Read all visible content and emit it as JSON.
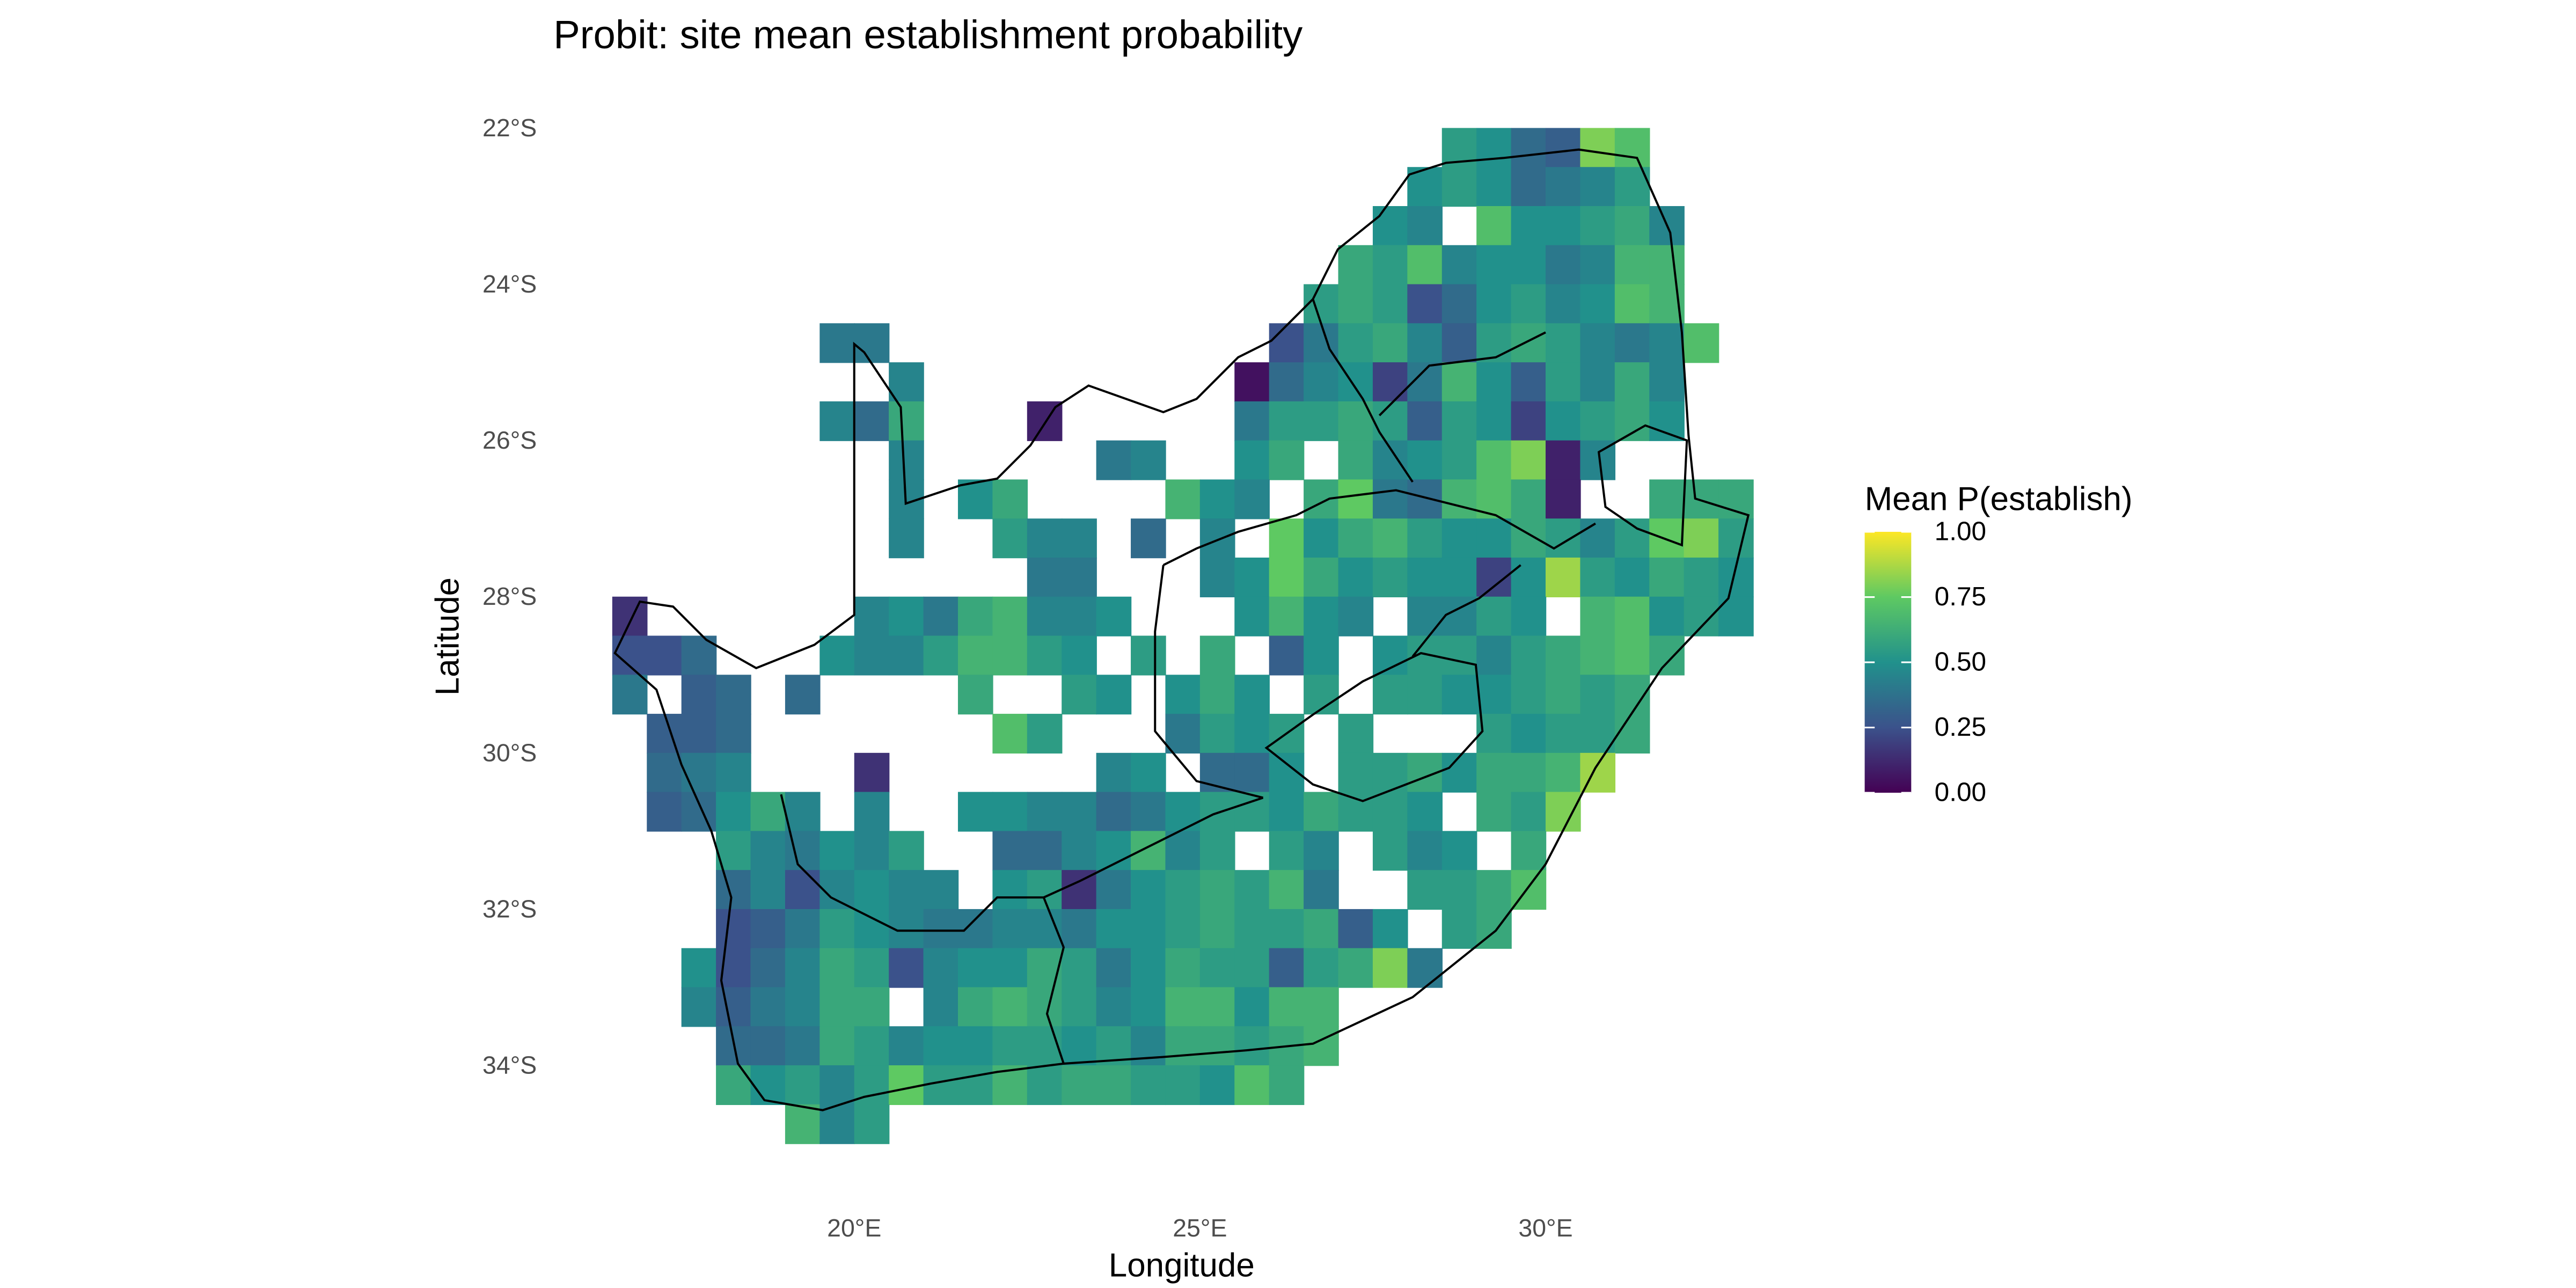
{
  "chart_data": {
    "type": "heatmap",
    "title": "Probit: site mean establishment probability",
    "x_label": "Longitude",
    "y_label": "Latitude",
    "legend_title": "Mean P(establish)",
    "xlim": [
      16.5,
      33.0
    ],
    "ylim": [
      -35.0,
      -22.0
    ],
    "clim": [
      0,
      1
    ],
    "colormap": [
      "#440154",
      "#3b528b",
      "#21918c",
      "#5ec962",
      "#fde725"
    ],
    "xticks": [
      {
        "value": 20,
        "label": "20°E"
      },
      {
        "value": 25,
        "label": "25°E"
      },
      {
        "value": 30,
        "label": "30°E"
      }
    ],
    "yticks": [
      {
        "value": -22,
        "label": "22°S"
      },
      {
        "value": -24,
        "label": "24°S"
      },
      {
        "value": -26,
        "label": "26°S"
      },
      {
        "value": -28,
        "label": "28°S"
      },
      {
        "value": -30,
        "label": "30°S"
      },
      {
        "value": -32,
        "label": "32°S"
      },
      {
        "value": -34,
        "label": "34°S"
      }
    ],
    "cticks": [
      {
        "value": 0,
        "label": "0.00"
      },
      {
        "value": 0.25,
        "label": "0.25"
      },
      {
        "value": 0.5,
        "label": "0.50"
      },
      {
        "value": 0.75,
        "label": "0.75"
      },
      {
        "value": 1,
        "label": "1.00"
      }
    ],
    "x": [
      16.75,
      17.25,
      17.75,
      18.25,
      18.75,
      19.25,
      19.75,
      20.25,
      20.75,
      21.25,
      21.75,
      22.25,
      22.75,
      23.25,
      23.75,
      24.25,
      24.75,
      25.25,
      25.75,
      26.25,
      26.75,
      27.25,
      27.75,
      28.25,
      28.75,
      29.25,
      29.75,
      30.25,
      30.75,
      31.25,
      31.75,
      32.25,
      32.75
    ],
    "y": [
      -22.25,
      -22.75,
      -23.25,
      -23.75,
      -24.25,
      -24.75,
      -25.25,
      -25.75,
      -26.25,
      -26.75,
      -27.25,
      -27.75,
      -28.25,
      -28.75,
      -29.25,
      -29.75,
      -30.25,
      -30.75,
      -31.25,
      -31.75,
      -32.25,
      -32.75,
      -33.25,
      -33.75,
      -34.25,
      -34.75
    ],
    "values": [
      [
        null,
        null,
        null,
        null,
        null,
        null,
        null,
        null,
        null,
        null,
        null,
        null,
        null,
        null,
        null,
        null,
        null,
        null,
        null,
        null,
        null,
        null,
        null,
        null,
        0.55,
        0.5,
        0.35,
        0.3,
        0.8,
        0.7,
        null,
        null,
        null
      ],
      [
        null,
        null,
        null,
        null,
        null,
        null,
        null,
        null,
        null,
        null,
        null,
        null,
        null,
        null,
        null,
        null,
        null,
        null,
        null,
        null,
        null,
        null,
        null,
        0.5,
        0.55,
        0.5,
        0.35,
        0.4,
        0.45,
        0.55,
        null,
        null,
        null
      ],
      [
        null,
        null,
        null,
        null,
        null,
        null,
        null,
        null,
        null,
        null,
        null,
        null,
        null,
        null,
        null,
        null,
        null,
        null,
        null,
        null,
        null,
        null,
        0.5,
        0.45,
        null,
        0.7,
        0.5,
        0.5,
        0.55,
        0.6,
        0.45,
        null,
        null
      ],
      [
        null,
        null,
        null,
        null,
        null,
        null,
        null,
        null,
        null,
        null,
        null,
        null,
        null,
        null,
        null,
        null,
        null,
        null,
        null,
        null,
        null,
        0.6,
        0.55,
        0.7,
        0.45,
        0.5,
        0.5,
        0.4,
        0.45,
        0.65,
        0.65,
        null,
        null
      ],
      [
        null,
        null,
        null,
        null,
        null,
        null,
        null,
        null,
        null,
        null,
        null,
        null,
        null,
        null,
        null,
        null,
        null,
        null,
        null,
        null,
        0.55,
        0.6,
        0.55,
        0.25,
        0.35,
        0.5,
        0.55,
        0.45,
        0.5,
        0.7,
        0.65,
        null,
        null
      ],
      [
        null,
        null,
        null,
        null,
        null,
        null,
        0.4,
        0.4,
        null,
        null,
        null,
        null,
        null,
        null,
        null,
        null,
        null,
        null,
        null,
        0.25,
        0.4,
        0.55,
        0.6,
        0.45,
        0.3,
        0.55,
        0.6,
        0.55,
        0.45,
        0.4,
        0.45,
        0.7,
        null
      ],
      [
        null,
        null,
        null,
        null,
        null,
        null,
        null,
        null,
        0.45,
        null,
        null,
        null,
        null,
        null,
        null,
        null,
        null,
        null,
        0.05,
        0.35,
        0.45,
        0.5,
        0.2,
        0.4,
        0.65,
        0.5,
        0.3,
        0.55,
        0.45,
        0.6,
        0.45,
        null,
        null
      ],
      [
        null,
        null,
        null,
        null,
        null,
        null,
        0.45,
        0.35,
        0.6,
        null,
        null,
        null,
        0.1,
        null,
        null,
        null,
        null,
        null,
        0.4,
        0.55,
        0.55,
        0.6,
        0.55,
        0.3,
        0.55,
        0.5,
        0.2,
        0.5,
        0.55,
        0.6,
        0.5,
        null,
        null
      ],
      [
        null,
        null,
        null,
        null,
        null,
        null,
        null,
        null,
        0.45,
        null,
        null,
        null,
        null,
        null,
        0.4,
        0.45,
        null,
        null,
        0.5,
        0.6,
        null,
        0.6,
        0.45,
        0.5,
        0.55,
        0.7,
        0.8,
        0.1,
        0.45,
        null,
        null,
        null,
        null
      ],
      [
        null,
        null,
        null,
        null,
        null,
        null,
        null,
        null,
        0.45,
        null,
        0.5,
        0.6,
        null,
        null,
        null,
        null,
        0.65,
        0.5,
        0.45,
        null,
        0.6,
        0.75,
        0.4,
        0.35,
        0.65,
        0.7,
        0.6,
        0.1,
        null,
        null,
        0.6,
        0.6,
        0.6
      ],
      [
        null,
        null,
        null,
        null,
        null,
        null,
        null,
        null,
        0.45,
        null,
        null,
        0.55,
        0.45,
        0.45,
        null,
        0.35,
        null,
        0.45,
        null,
        0.75,
        0.5,
        0.6,
        0.65,
        0.55,
        0.5,
        0.5,
        0.6,
        0.55,
        0.45,
        0.55,
        0.75,
        0.8,
        0.55
      ],
      [
        null,
        null,
        null,
        null,
        null,
        null,
        null,
        null,
        null,
        null,
        null,
        null,
        0.4,
        0.4,
        null,
        null,
        null,
        0.45,
        0.5,
        0.75,
        0.6,
        0.5,
        0.55,
        0.5,
        0.5,
        0.2,
        0.5,
        0.85,
        0.55,
        0.5,
        0.6,
        0.55,
        0.5
      ],
      [
        0.15,
        null,
        null,
        null,
        null,
        null,
        null,
        0.45,
        0.5,
        0.4,
        0.6,
        0.65,
        0.45,
        0.45,
        0.5,
        null,
        null,
        null,
        0.5,
        0.65,
        0.5,
        0.45,
        null,
        0.45,
        0.45,
        0.55,
        0.5,
        null,
        0.65,
        0.7,
        0.5,
        0.55,
        0.5
      ],
      [
        0.25,
        0.25,
        0.35,
        null,
        null,
        null,
        0.5,
        0.45,
        0.45,
        0.55,
        0.65,
        0.65,
        0.55,
        0.5,
        null,
        0.55,
        null,
        0.6,
        null,
        0.3,
        0.5,
        null,
        0.5,
        0.55,
        0.55,
        0.45,
        0.55,
        0.6,
        0.65,
        0.7,
        0.6,
        null,
        null
      ],
      [
        0.4,
        null,
        0.3,
        0.35,
        null,
        0.35,
        null,
        null,
        null,
        null,
        0.6,
        null,
        null,
        0.55,
        0.5,
        null,
        0.5,
        0.6,
        0.5,
        null,
        0.55,
        null,
        0.55,
        0.55,
        0.5,
        0.5,
        0.55,
        0.6,
        0.55,
        0.6,
        null,
        null,
        null
      ],
      [
        null,
        0.3,
        0.3,
        0.35,
        null,
        null,
        null,
        null,
        null,
        null,
        null,
        0.7,
        0.55,
        null,
        null,
        null,
        0.4,
        0.55,
        0.5,
        0.55,
        null,
        0.55,
        null,
        null,
        null,
        0.55,
        0.5,
        0.55,
        0.55,
        0.6,
        null,
        null,
        null
      ],
      [
        null,
        0.35,
        0.4,
        0.45,
        null,
        null,
        null,
        0.15,
        null,
        null,
        null,
        null,
        null,
        null,
        0.45,
        0.5,
        null,
        0.35,
        0.35,
        0.5,
        null,
        0.55,
        0.55,
        0.6,
        0.5,
        0.6,
        0.6,
        0.65,
        0.85,
        null,
        null,
        null,
        null
      ],
      [
        null,
        0.3,
        0.35,
        0.5,
        0.6,
        0.45,
        null,
        0.45,
        null,
        null,
        0.5,
        0.5,
        0.45,
        0.45,
        0.35,
        0.4,
        0.5,
        0.55,
        0.55,
        0.5,
        0.6,
        0.55,
        0.55,
        0.5,
        null,
        0.6,
        0.55,
        0.8,
        null,
        null,
        null,
        null,
        null
      ],
      [
        null,
        null,
        null,
        0.55,
        0.45,
        0.4,
        0.5,
        0.45,
        0.55,
        null,
        null,
        0.35,
        0.35,
        0.45,
        0.5,
        0.65,
        0.45,
        0.55,
        null,
        0.55,
        0.45,
        null,
        0.55,
        0.45,
        0.5,
        null,
        0.6,
        null,
        null,
        null,
        null,
        null,
        null
      ],
      [
        null,
        null,
        null,
        0.35,
        0.45,
        0.25,
        0.45,
        0.5,
        0.45,
        0.45,
        null,
        0.5,
        0.55,
        0.15,
        0.4,
        0.5,
        0.55,
        0.6,
        0.55,
        0.65,
        0.4,
        null,
        null,
        0.55,
        0.55,
        0.6,
        0.7,
        null,
        null,
        null,
        null,
        null,
        null
      ],
      [
        null,
        null,
        null,
        0.25,
        0.3,
        0.4,
        0.55,
        0.5,
        0.45,
        0.4,
        0.4,
        0.45,
        0.45,
        0.4,
        0.5,
        0.5,
        0.55,
        0.6,
        0.55,
        0.55,
        0.6,
        0.3,
        0.5,
        null,
        0.55,
        0.6,
        null,
        null,
        null,
        null,
        null,
        null,
        null
      ],
      [
        null,
        null,
        0.5,
        0.25,
        0.35,
        0.45,
        0.6,
        0.55,
        0.25,
        0.45,
        0.5,
        0.5,
        0.6,
        0.55,
        0.4,
        0.5,
        0.6,
        0.55,
        0.55,
        0.3,
        0.55,
        0.6,
        0.8,
        0.4,
        null,
        null,
        null,
        null,
        null,
        null,
        null,
        null,
        null
      ],
      [
        null,
        null,
        0.45,
        0.3,
        0.4,
        0.45,
        0.6,
        0.6,
        null,
        0.45,
        0.6,
        0.65,
        0.6,
        0.55,
        0.45,
        0.5,
        0.65,
        0.65,
        0.5,
        0.65,
        0.65,
        null,
        null,
        null,
        null,
        null,
        null,
        null,
        null,
        null,
        null,
        null,
        null
      ],
      [
        null,
        null,
        null,
        0.35,
        0.35,
        0.4,
        0.6,
        0.55,
        0.45,
        0.5,
        0.5,
        0.55,
        0.55,
        0.5,
        0.55,
        0.45,
        0.6,
        0.6,
        0.55,
        0.6,
        0.65,
        null,
        null,
        null,
        null,
        null,
        null,
        null,
        null,
        null,
        null,
        null,
        null
      ],
      [
        null,
        null,
        null,
        0.6,
        0.5,
        0.55,
        0.45,
        0.55,
        0.75,
        0.55,
        0.55,
        0.65,
        0.55,
        0.6,
        0.6,
        0.55,
        0.55,
        0.5,
        0.7,
        0.6,
        null,
        null,
        null,
        null,
        null,
        null,
        null,
        null,
        null,
        null,
        null,
        null,
        null
      ],
      [
        null,
        null,
        null,
        null,
        null,
        0.65,
        0.45,
        0.55,
        null,
        null,
        null,
        null,
        null,
        null,
        null,
        null,
        null,
        null,
        null,
        null,
        null,
        null,
        null,
        null,
        null,
        null,
        null,
        null,
        null,
        null,
        null,
        null,
        null
      ]
    ]
  }
}
